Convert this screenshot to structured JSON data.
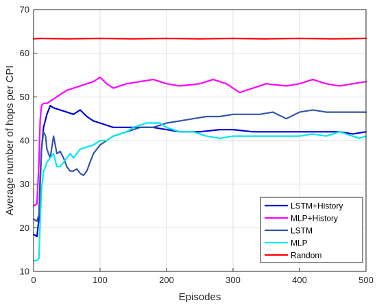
{
  "chart_data": {
    "type": "line",
    "title": "",
    "xlabel": "Episodes",
    "ylabel": "Average  number of hops  per CPI",
    "xlim": [
      0,
      500
    ],
    "ylim": [
      10,
      70
    ],
    "xticks": [
      "0",
      "100",
      "200",
      "300",
      "400",
      "500"
    ],
    "yticks": [
      "10",
      "20",
      "30",
      "40",
      "50",
      "60",
      "70"
    ],
    "grid": true,
    "legend_position": "bottom-right",
    "series": [
      {
        "name": "LSTM+History",
        "color": "#0000dd",
        "x": [
          0,
          5,
          8,
          10,
          12,
          15,
          20,
          25,
          30,
          40,
          50,
          60,
          70,
          80,
          90,
          100,
          120,
          140,
          160,
          180,
          200,
          220,
          250,
          280,
          300,
          330,
          360,
          400,
          430,
          460,
          480,
          500
        ],
        "y": [
          18.5,
          18,
          22,
          32,
          38,
          43,
          46,
          48,
          47.5,
          47,
          46.5,
          46,
          47,
          45.5,
          44.5,
          44,
          43,
          43,
          43,
          43,
          42.5,
          42,
          42,
          42.5,
          42.5,
          42,
          42,
          42,
          42,
          42,
          41.5,
          42
        ]
      },
      {
        "name": "MLP+History",
        "color": "#ff00ff",
        "x": [
          0,
          5,
          8,
          10,
          12,
          15,
          20,
          30,
          40,
          50,
          60,
          70,
          80,
          90,
          100,
          110,
          120,
          140,
          160,
          180,
          200,
          220,
          250,
          270,
          290,
          310,
          330,
          350,
          380,
          400,
          420,
          440,
          460,
          480,
          500
        ],
        "y": [
          25,
          25.5,
          35,
          45,
          48,
          48.5,
          48.5,
          49.5,
          50.5,
          51.5,
          52,
          52.5,
          53,
          53.5,
          54.5,
          53,
          52,
          53,
          53.5,
          54,
          53,
          52.5,
          53,
          54,
          53,
          51,
          52,
          53,
          52.5,
          53,
          54,
          53,
          52.5,
          53,
          53.5
        ]
      },
      {
        "name": "LSTM",
        "color": "#3355aa",
        "x": [
          0,
          5,
          8,
          10,
          12,
          15,
          18,
          20,
          25,
          30,
          35,
          40,
          45,
          50,
          55,
          60,
          65,
          70,
          75,
          80,
          85,
          90,
          100,
          110,
          120,
          140,
          160,
          180,
          200,
          220,
          240,
          260,
          280,
          300,
          320,
          340,
          360,
          380,
          400,
          420,
          440,
          460,
          480,
          500
        ],
        "y": [
          22,
          21.5,
          23,
          30,
          38,
          42,
          41,
          38,
          36,
          41,
          37,
          37.5,
          36,
          34,
          33,
          33,
          33.5,
          32.5,
          32,
          33,
          35,
          37,
          39,
          40,
          41,
          42,
          43,
          43,
          44,
          44.5,
          45,
          45.5,
          45.5,
          46,
          46,
          46,
          46.5,
          45,
          46.5,
          47,
          46.5,
          46.5,
          46.5,
          46.5
        ]
      },
      {
        "name": "MLP",
        "color": "#00e8ee",
        "x": [
          0,
          5,
          8,
          10,
          12,
          15,
          18,
          20,
          25,
          30,
          35,
          40,
          45,
          50,
          55,
          60,
          70,
          80,
          90,
          100,
          110,
          120,
          130,
          140,
          150,
          160,
          170,
          180,
          190,
          200,
          220,
          240,
          260,
          280,
          300,
          320,
          340,
          360,
          380,
          400,
          420,
          440,
          460,
          480,
          490,
          500
        ],
        "y": [
          12.5,
          12.5,
          13,
          22,
          29,
          33,
          34,
          35,
          36,
          37,
          34,
          34,
          35,
          36,
          37,
          36,
          38,
          38.5,
          39,
          40,
          40,
          41,
          41.5,
          42,
          43,
          43.5,
          44,
          44,
          44,
          43,
          42,
          42,
          41,
          40.5,
          41,
          41,
          41,
          41,
          41,
          41,
          41.5,
          41,
          42,
          41,
          40.5,
          41
        ]
      },
      {
        "name": "Random",
        "color": "#ff0000",
        "x": [
          0,
          10,
          50,
          100,
          150,
          200,
          250,
          300,
          350,
          400,
          450,
          500
        ],
        "y": [
          63.3,
          63.4,
          63.3,
          63.4,
          63.3,
          63.4,
          63.3,
          63.4,
          63.3,
          63.4,
          63.3,
          63.4
        ]
      }
    ]
  }
}
